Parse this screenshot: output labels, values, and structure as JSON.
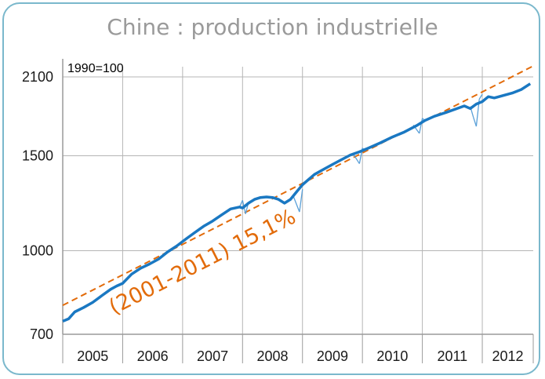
{
  "chart_data": {
    "type": "line",
    "title": "Chine : production industrielle",
    "unit_note": "1990=100",
    "y_scale": "log",
    "ylim": [
      700,
      2200
    ],
    "y_ticks": [
      700,
      1000,
      1500,
      2100
    ],
    "y_tick_labels": [
      "700",
      "1000",
      "1500",
      "2100"
    ],
    "x_categories": [
      "2005",
      "2006",
      "2007",
      "2008",
      "2009",
      "2010",
      "2011",
      "2012"
    ],
    "xlim": [
      2005.0,
      2012.85
    ],
    "grid": true,
    "trend_label": "(2001-2011) 15,1%",
    "series": [
      {
        "role": "smoothed",
        "color": "#1a78c2",
        "x": [
          2005.0,
          2005.1,
          2005.2,
          2005.35,
          2005.5,
          2005.65,
          2005.8,
          2005.9,
          2006.0,
          2006.15,
          2006.3,
          2006.45,
          2006.6,
          2006.75,
          2006.9,
          2007.05,
          2007.2,
          2007.35,
          2007.5,
          2007.65,
          2007.8,
          2007.95,
          2008.0,
          2008.1,
          2008.2,
          2008.3,
          2008.4,
          2008.5,
          2008.6,
          2008.7,
          2008.8,
          2008.9,
          2009.0,
          2009.1,
          2009.2,
          2009.35,
          2009.5,
          2009.65,
          2009.8,
          2009.95,
          2010.1,
          2010.3,
          2010.5,
          2010.7,
          2010.9,
          2011.05,
          2011.2,
          2011.4,
          2011.55,
          2011.7,
          2011.8,
          2011.9,
          2012.0,
          2012.1,
          2012.2,
          2012.35,
          2012.5,
          2012.65,
          2012.8
        ],
        "values": [
          740,
          748,
          770,
          785,
          802,
          825,
          848,
          860,
          870,
          905,
          928,
          945,
          965,
          995,
          1020,
          1050,
          1080,
          1110,
          1135,
          1165,
          1195,
          1205,
          1200,
          1225,
          1245,
          1255,
          1258,
          1255,
          1245,
          1225,
          1245,
          1285,
          1325,
          1355,
          1385,
          1415,
          1445,
          1475,
          1505,
          1525,
          1550,
          1585,
          1625,
          1660,
          1705,
          1745,
          1775,
          1805,
          1830,
          1855,
          1835,
          1870,
          1890,
          1930,
          1920,
          1940,
          1960,
          1990,
          2040
        ]
      },
      {
        "role": "monthly",
        "color": "#5aa0d8",
        "x": [
          2007.95,
          2008.0,
          2008.05,
          2008.1,
          2008.85,
          2008.95,
          2009.0,
          2009.85,
          2009.95,
          2010.0,
          2010.05,
          2010.85,
          2010.95,
          2011.0,
          2011.05,
          2011.8,
          2011.85,
          2011.9,
          2011.95,
          2012.0
        ],
        "values": [
          1205,
          1240,
          1170,
          1230,
          1260,
          1180,
          1300,
          1510,
          1450,
          1550,
          1530,
          1710,
          1650,
          1760,
          1740,
          1850,
          1770,
          1700,
          1910,
          1950
        ]
      },
      {
        "role": "trend",
        "color": "#e26b0a",
        "dashed": true,
        "x": [
          2005.0,
          2012.85
        ],
        "values": [
          792,
          2200
        ]
      }
    ]
  }
}
